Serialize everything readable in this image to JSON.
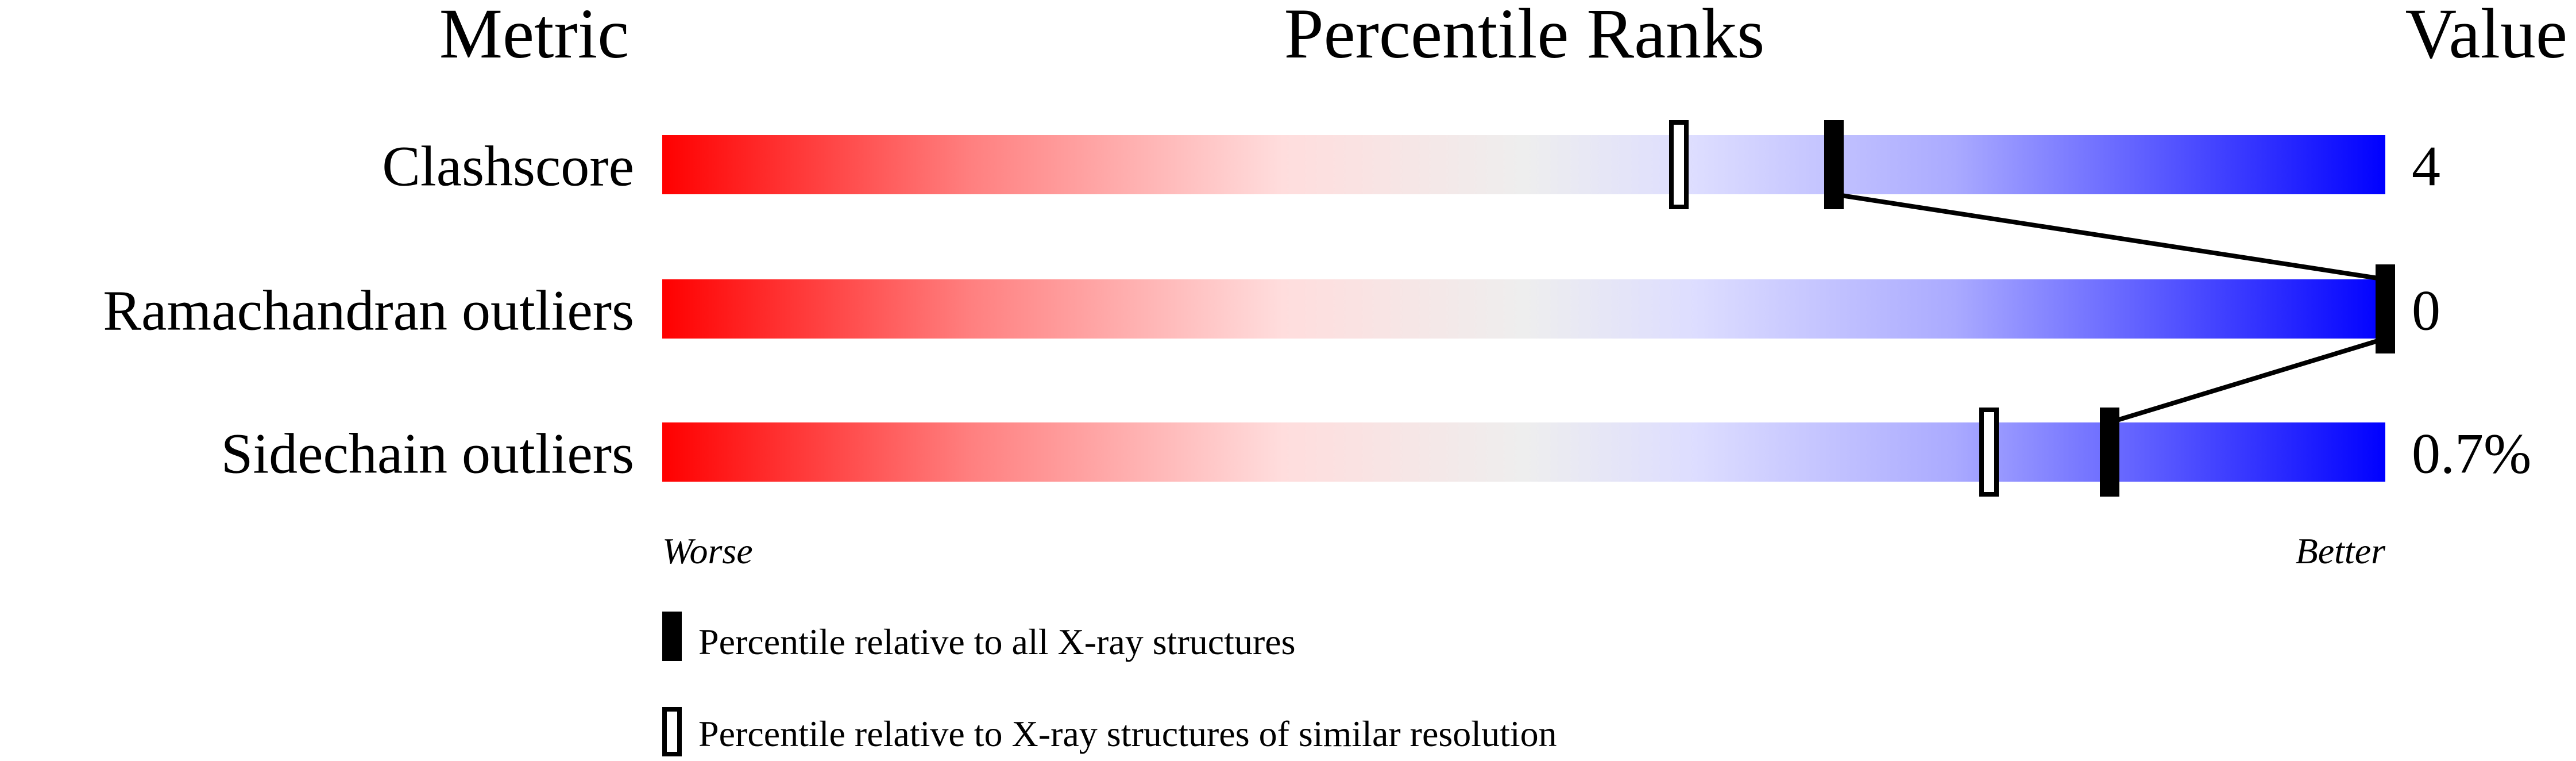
{
  "chart_data": {
    "type": "percentile-slider",
    "headers": {
      "metric": "Metric",
      "ranks": "Percentile Ranks",
      "value": "Value"
    },
    "xlim": [
      0,
      100
    ],
    "axis_left_label": "Worse",
    "axis_right_label": "Better",
    "gradient_colors": [
      "#ff0000",
      "#ff8080",
      "#ffdddd",
      "#eeeeee",
      "#ddddff",
      "#aaaaff",
      "#0000ff"
    ],
    "metrics": [
      {
        "name": "Clashscore",
        "value": "4",
        "percentile_all": 68,
        "percentile_similar": 59
      },
      {
        "name": "Ramachandran outliers",
        "value": "0",
        "percentile_all": 100,
        "percentile_similar": null
      },
      {
        "name": "Sidechain outliers",
        "value": "0.7%",
        "percentile_all": 84,
        "percentile_similar": 77
      }
    ],
    "legend": [
      {
        "marker": "filled",
        "label": "Percentile relative to all X-ray structures"
      },
      {
        "marker": "open",
        "label": "Percentile relative to X-ray structures of similar resolution"
      }
    ]
  }
}
